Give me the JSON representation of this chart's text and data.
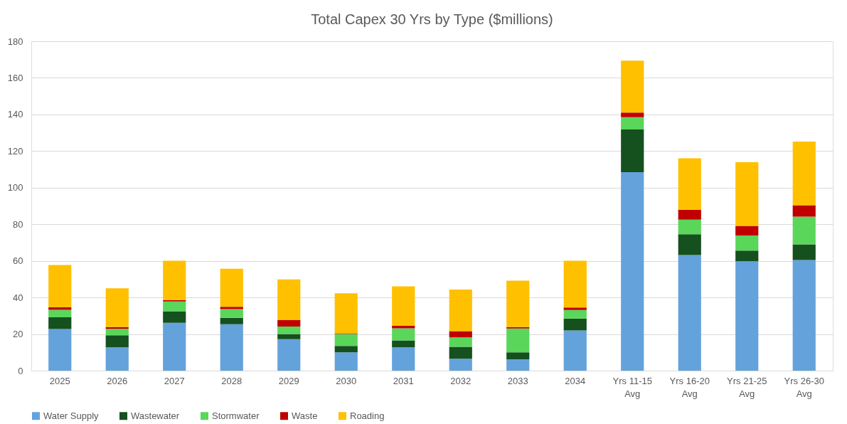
{
  "chart_data": {
    "type": "bar",
    "title": "Total Capex 30 Yrs by Type ($millions)",
    "stacked": true,
    "grid": "y",
    "legend": "bottom",
    "categories": [
      "2025",
      "2026",
      "2027",
      "2028",
      "2029",
      "2030",
      "2031",
      "2032",
      "2033",
      "2034",
      "Yrs 11-15 Avg",
      "Yrs 16-20 Avg",
      "Yrs 21-25 Avg",
      "Yrs 26-30 Avg"
    ],
    "ylim": [
      0,
      180
    ],
    "yticks": [
      0,
      20,
      40,
      60,
      80,
      100,
      120,
      140,
      160,
      180
    ],
    "series": [
      {
        "name": "Water Supply",
        "color": "#64a2dc",
        "values": [
          22.7,
          12.7,
          26.1,
          25.4,
          17.2,
          10,
          12.7,
          6.5,
          6.2,
          22,
          108.5,
          63.2,
          59.8,
          60.5
        ]
      },
      {
        "name": "Wastewater",
        "color": "#15501f",
        "values": [
          6.5,
          6.6,
          6.2,
          3.5,
          2.8,
          3.5,
          3.8,
          6.5,
          3.8,
          6.5,
          23.3,
          11.3,
          5.8,
          8.5
        ]
      },
      {
        "name": "Stormwater",
        "color": "#5ad65a",
        "values": [
          4,
          3.5,
          5.5,
          4.7,
          4.1,
          6.5,
          6.6,
          5.2,
          13,
          4.6,
          6.7,
          8,
          8.3,
          15.2
        ]
      },
      {
        "name": "Waste",
        "color": "#c00000",
        "values": [
          1.4,
          1,
          0.8,
          1.3,
          3.5,
          0.4,
          1.4,
          3.4,
          0.8,
          1.4,
          2.5,
          5.5,
          5.2,
          6.2
        ]
      },
      {
        "name": "Roading",
        "color": "#ffc000",
        "values": [
          23.1,
          21.2,
          21.5,
          20.8,
          22.3,
          21.9,
          21.6,
          22.7,
          25.4,
          25.6,
          28.4,
          28,
          34.8,
          34.8
        ]
      }
    ]
  }
}
